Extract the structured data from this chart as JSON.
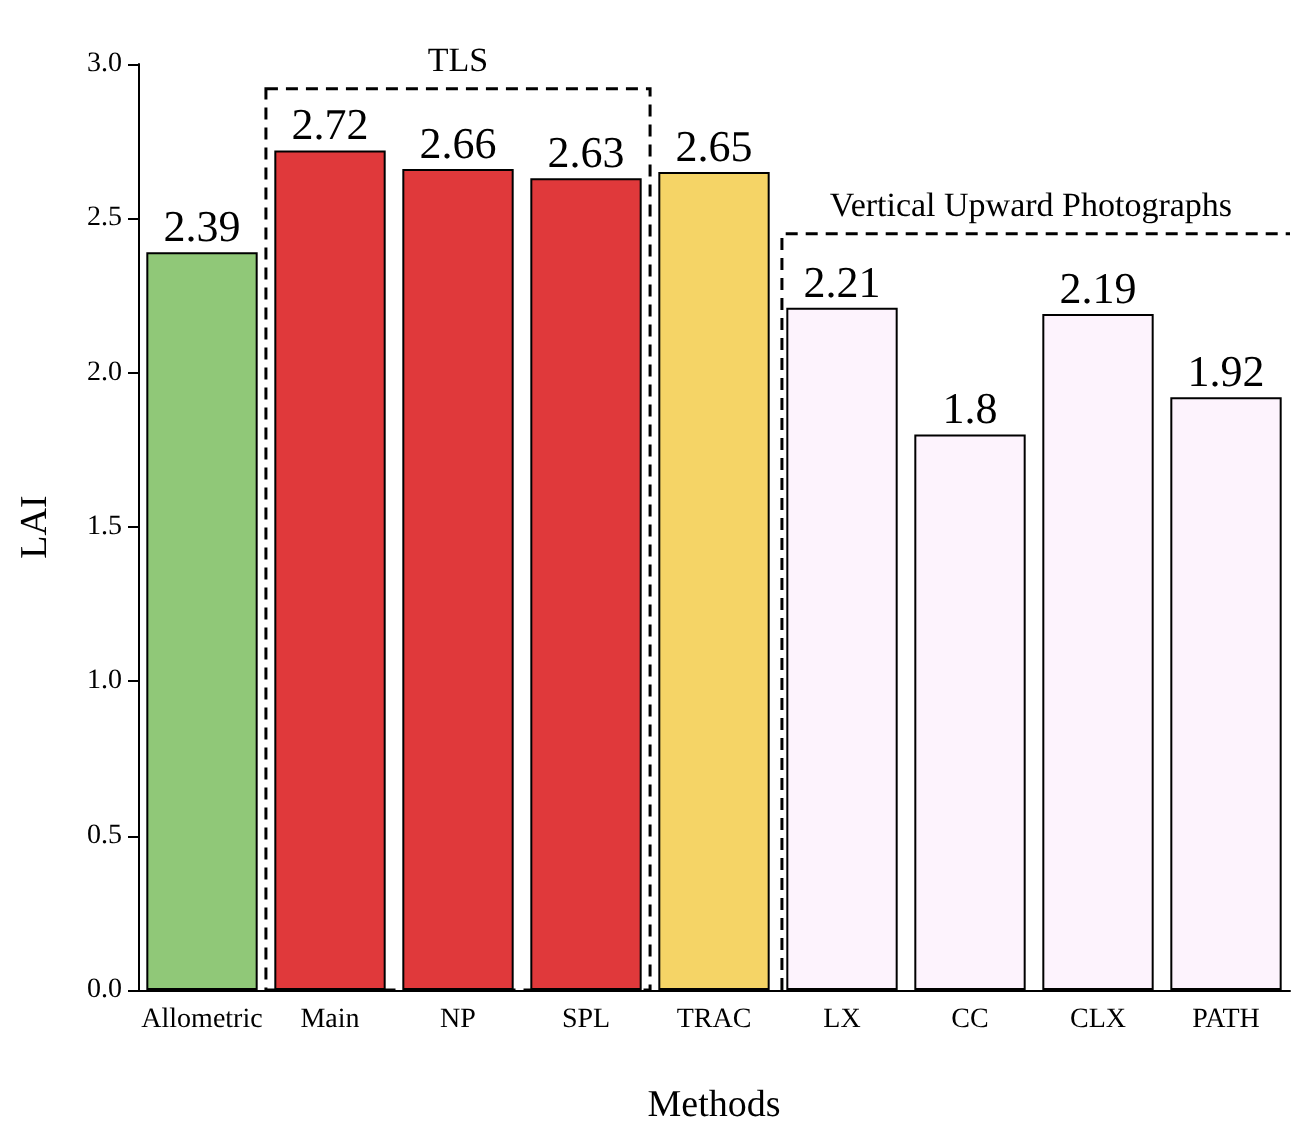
{
  "chart_data": {
    "type": "bar",
    "xlabel": "Methods",
    "ylabel": "LAI",
    "categories": [
      "Allometric",
      "Main",
      "NP",
      "SPL",
      "TRAC",
      "LX",
      "CC",
      "CLX",
      "PATH"
    ],
    "values": [
      2.39,
      2.72,
      2.66,
      2.63,
      2.65,
      2.21,
      1.8,
      2.19,
      1.92
    ],
    "colors": [
      "#90c878",
      "#e0393b",
      "#e0393b",
      "#e0393b",
      "#f5d466",
      "#fdf3fd",
      "#fdf3fd",
      "#fdf3fd",
      "#fdf3fd"
    ],
    "ylim": [
      0,
      3
    ],
    "yticks": [
      {
        "value": 0,
        "label": "0.0"
      },
      {
        "value": 0.5,
        "label": "0.5"
      },
      {
        "value": 1,
        "label": "1.0"
      },
      {
        "value": 1.5,
        "label": "1.5"
      },
      {
        "value": 2,
        "label": "2.0"
      },
      {
        "value": 2.5,
        "label": "2.5"
      },
      {
        "value": 3,
        "label": "3.0"
      }
    ],
    "data_labels": true,
    "grid": false,
    "annotations": [
      "TLS",
      "Vertical Upward Photographs"
    ]
  }
}
